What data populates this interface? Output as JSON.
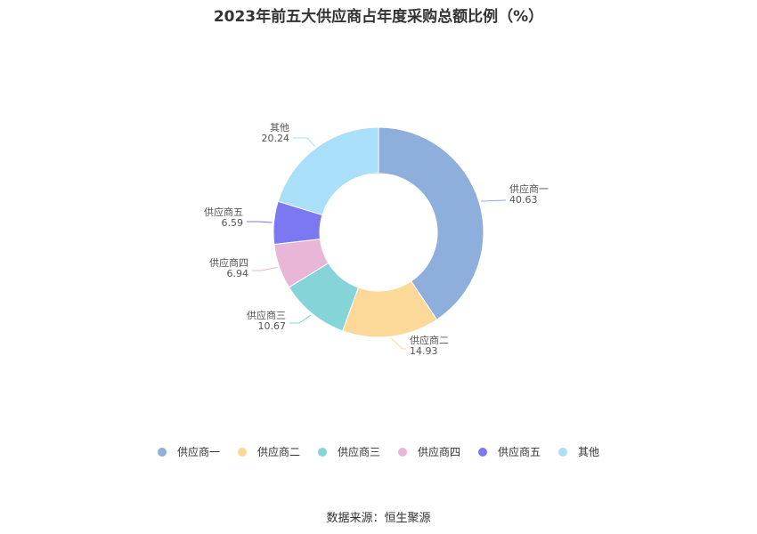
{
  "title": "2023年前五大供应商占年度采购总额比例（%）",
  "source": "数据来源：恒生聚源",
  "chart_data": {
    "type": "pie",
    "variant": "donut",
    "title": "2023年前五大供应商占年度采购总额比例（%）",
    "legend_position": "bottom",
    "categories": [
      "供应商一",
      "供应商二",
      "供应商三",
      "供应商四",
      "供应商五",
      "其他"
    ],
    "values": [
      40.63,
      14.93,
      10.67,
      6.94,
      6.59,
      20.24
    ],
    "value_labels": [
      "40.63",
      "14.93",
      "10.67",
      "6.94",
      "6.59",
      "20.24"
    ],
    "colors": [
      "#8eaedb",
      "#fdd999",
      "#85d5d8",
      "#e8b7d8",
      "#7b78f2",
      "#a9dff8"
    ]
  }
}
